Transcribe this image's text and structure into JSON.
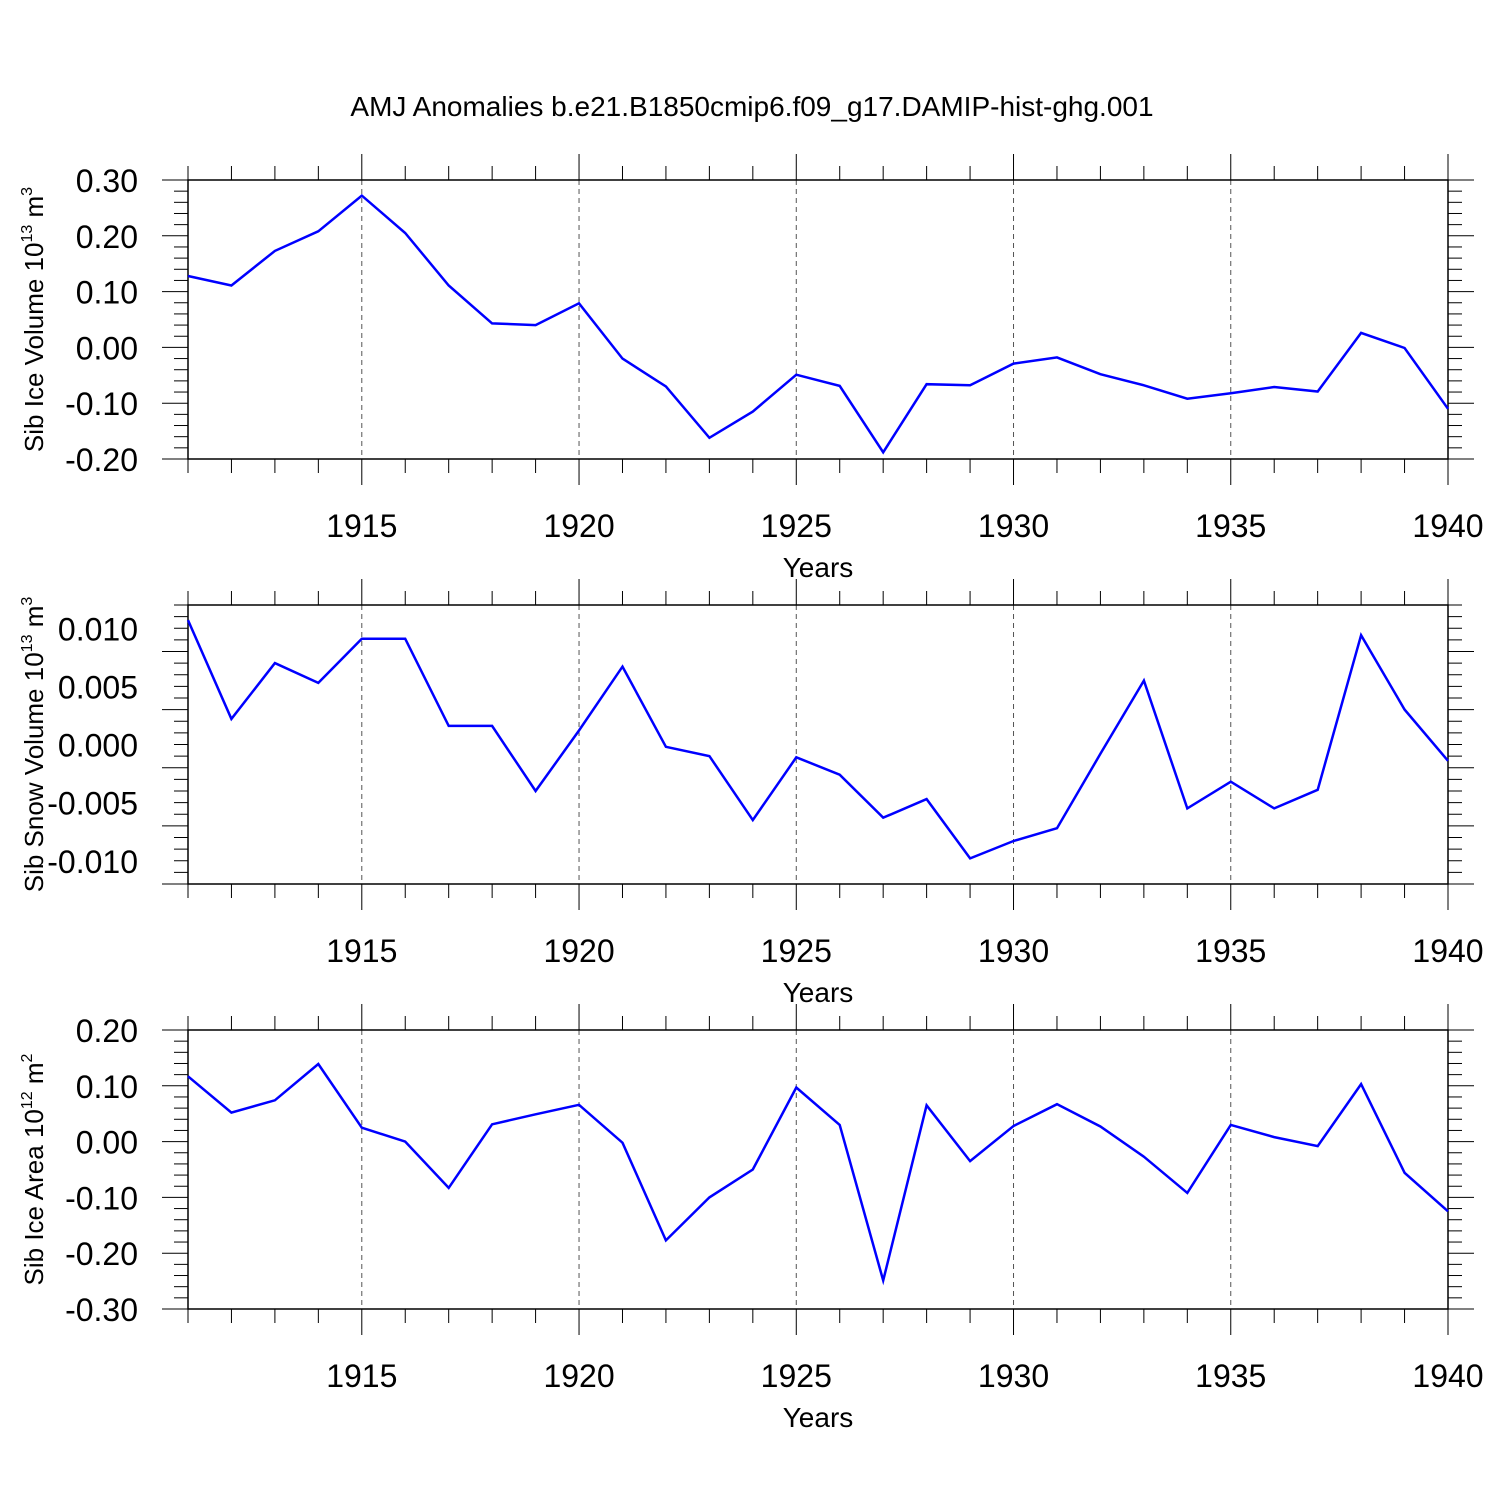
{
  "title": "AMJ Anomalies b.e21.B1850cmip6.f09_g17.DAMIP-hist-ghg.001",
  "chart_data": [
    {
      "type": "line",
      "ylabel_main": "Sib Ice Volume 10",
      "ylabel_exp": "13",
      "ylabel_unit": " m",
      "ylabel_unit_exp": "3",
      "xlabel": "Years",
      "xlim": [
        1911,
        1940
      ],
      "ylim": [
        -0.2,
        0.3
      ],
      "yticks": [
        0.3,
        0.2,
        0.1,
        0.0,
        -0.1,
        -0.2
      ],
      "ytick_labels": [
        "0.30",
        "0.20",
        "0.10",
        "0.00",
        "-0.10",
        "-0.20"
      ],
      "xticks": [
        1915,
        1920,
        1925,
        1930,
        1935,
        1940
      ],
      "xtick_labels": [
        "1915",
        "1920",
        "1925",
        "1930",
        "1935",
        "1940"
      ],
      "series_color": "#0000ff",
      "x": [
        1911,
        1912,
        1913,
        1914,
        1915,
        1916,
        1917,
        1918,
        1919,
        1920,
        1921,
        1922,
        1923,
        1924,
        1925,
        1926,
        1927,
        1928,
        1929,
        1930,
        1931,
        1932,
        1933,
        1934,
        1935,
        1936,
        1937,
        1938,
        1939,
        1940
      ],
      "values": [
        0.128,
        0.111,
        0.173,
        0.208,
        0.272,
        0.205,
        0.111,
        0.043,
        0.04,
        0.079,
        -0.02,
        -0.07,
        -0.162,
        -0.115,
        -0.049,
        -0.069,
        -0.188,
        -0.066,
        -0.068,
        -0.029,
        -0.018,
        -0.048,
        -0.068,
        -0.092,
        -0.082,
        -0.071,
        -0.079,
        0.026,
        -0.001,
        -0.11
      ]
    },
    {
      "type": "line",
      "ylabel_main": "Sib Snow Volume 10",
      "ylabel_exp": "13",
      "ylabel_unit": " m",
      "ylabel_unit_exp": "3",
      "xlabel": "Years",
      "xlim": [
        1911,
        1940
      ],
      "ylim": [
        -0.012,
        0.012
      ],
      "yticks": [
        0.01,
        0.005,
        0.0,
        -0.005,
        -0.01
      ],
      "ytick_labels": [
        "0.010",
        "0.005",
        "0.000",
        "-0.005",
        "-0.010"
      ],
      "xticks": [
        1915,
        1920,
        1925,
        1930,
        1935,
        1940
      ],
      "xtick_labels": [
        "1915",
        "1920",
        "1925",
        "1930",
        "1935",
        "1940"
      ],
      "series_color": "#0000ff",
      "x": [
        1911,
        1912,
        1913,
        1914,
        1915,
        1916,
        1917,
        1918,
        1919,
        1920,
        1921,
        1922,
        1923,
        1924,
        1925,
        1926,
        1927,
        1928,
        1929,
        1930,
        1931,
        1932,
        1933,
        1934,
        1935,
        1936,
        1937,
        1938,
        1939,
        1940
      ],
      "values": [
        0.0107,
        0.0022,
        0.007,
        0.0053,
        0.0091,
        0.0091,
        0.0016,
        0.0016,
        -0.004,
        0.0012,
        0.0067,
        -0.0002,
        -0.001,
        -0.0065,
        -0.0011,
        -0.0026,
        -0.0063,
        -0.0047,
        -0.0098,
        -0.0083,
        -0.0072,
        -0.0008,
        0.0055,
        -0.0055,
        -0.0032,
        -0.0055,
        -0.0039,
        0.0094,
        0.003,
        -0.0014
      ]
    },
    {
      "type": "line",
      "ylabel_main": "Sib Ice Area 10",
      "ylabel_exp": "12",
      "ylabel_unit": " m",
      "ylabel_unit_exp": "2",
      "xlabel": "Years",
      "xlim": [
        1911,
        1940
      ],
      "ylim": [
        -0.3,
        0.2
      ],
      "yticks": [
        0.2,
        0.1,
        0.0,
        -0.1,
        -0.2,
        -0.3
      ],
      "ytick_labels": [
        "0.20",
        "0.10",
        "0.00",
        "-0.10",
        "-0.20",
        "-0.30"
      ],
      "xticks": [
        1915,
        1920,
        1925,
        1930,
        1935,
        1940
      ],
      "xtick_labels": [
        "1915",
        "1920",
        "1925",
        "1930",
        "1935",
        "1940"
      ],
      "series_color": "#0000ff",
      "x": [
        1911,
        1912,
        1913,
        1914,
        1915,
        1916,
        1917,
        1918,
        1919,
        1920,
        1921,
        1922,
        1923,
        1924,
        1925,
        1926,
        1927,
        1928,
        1929,
        1930,
        1931,
        1932,
        1933,
        1934,
        1935,
        1936,
        1937,
        1938,
        1939,
        1940
      ],
      "values": [
        0.117,
        0.052,
        0.074,
        0.139,
        0.025,
        0.0,
        -0.083,
        0.031,
        0.049,
        0.066,
        -0.002,
        -0.177,
        -0.1,
        -0.05,
        0.097,
        0.03,
        -0.249,
        0.065,
        -0.035,
        0.028,
        0.067,
        0.027,
        -0.027,
        -0.092,
        0.03,
        0.008,
        -0.008,
        0.103,
        -0.056,
        -0.125
      ]
    }
  ]
}
